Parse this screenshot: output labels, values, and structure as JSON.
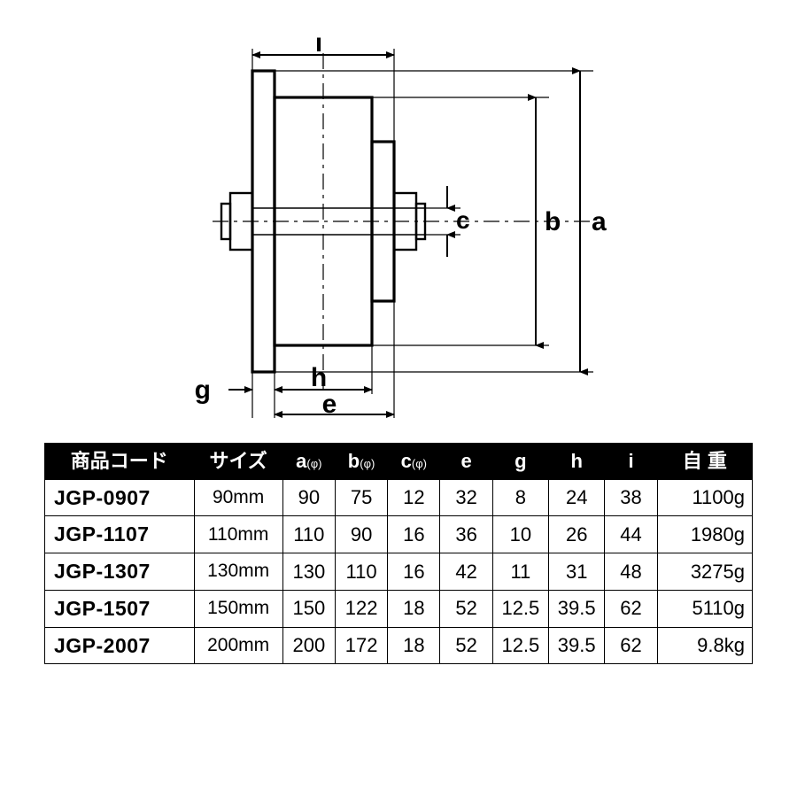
{
  "diagram": {
    "labels": {
      "a": "a",
      "b": "b",
      "c": "c",
      "e": "e",
      "g": "g",
      "h": "h",
      "i": "i"
    },
    "stroke": "#000000",
    "stroke_thin": 1.8,
    "stroke_med": 2.4,
    "stroke_bold": 3.2,
    "arrow_len": 10
  },
  "table": {
    "header_bg": "#000000",
    "header_fg": "#ffffff",
    "border": "#000000",
    "columns": [
      {
        "key": "code",
        "label": "商品コード"
      },
      {
        "key": "size",
        "label": "サイズ"
      },
      {
        "key": "a",
        "label": "a",
        "phi": true
      },
      {
        "key": "b",
        "label": "b",
        "phi": true
      },
      {
        "key": "c",
        "label": "c",
        "phi": true
      },
      {
        "key": "e",
        "label": "e"
      },
      {
        "key": "g",
        "label": "g"
      },
      {
        "key": "h",
        "label": "h"
      },
      {
        "key": "i",
        "label": "i"
      },
      {
        "key": "weight",
        "label": "自 重"
      }
    ],
    "rows": [
      {
        "code": "JGP-0907",
        "size": "90mm",
        "a": "90",
        "b": "75",
        "c": "12",
        "e": "32",
        "g": "8",
        "h": "24",
        "i": "38",
        "weight": "1100g"
      },
      {
        "code": "JGP-1107",
        "size": "110mm",
        "a": "110",
        "b": "90",
        "c": "16",
        "e": "36",
        "g": "10",
        "h": "26",
        "i": "44",
        "weight": "1980g"
      },
      {
        "code": "JGP-1307",
        "size": "130mm",
        "a": "130",
        "b": "110",
        "c": "16",
        "e": "42",
        "g": "11",
        "h": "31",
        "i": "48",
        "weight": "3275g"
      },
      {
        "code": "JGP-1507",
        "size": "150mm",
        "a": "150",
        "b": "122",
        "c": "18",
        "e": "52",
        "g": "12.5",
        "h": "39.5",
        "i": "62",
        "weight": "5110g"
      },
      {
        "code": "JGP-2007",
        "size": "200mm",
        "a": "200",
        "b": "172",
        "c": "18",
        "e": "52",
        "g": "12.5",
        "h": "39.5",
        "i": "62",
        "weight": "9.8kg"
      }
    ]
  }
}
